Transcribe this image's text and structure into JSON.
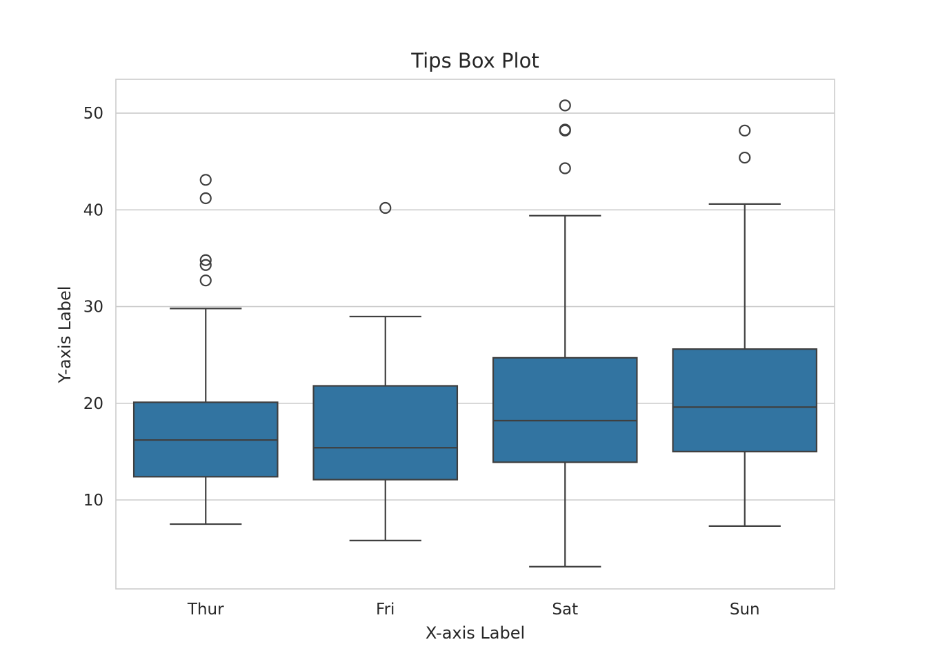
{
  "chart_data": {
    "type": "box",
    "title": "Tips Box Plot",
    "xlabel": "X-axis Label",
    "ylabel": "Y-axis Label",
    "categories": [
      "Thur",
      "Fri",
      "Sat",
      "Sun"
    ],
    "yticks": [
      10,
      20,
      30,
      40,
      50
    ],
    "ylim": [
      0.8,
      53.5
    ],
    "grid": true,
    "box_color": "#3274a1",
    "line_color": "#3f3f3f",
    "boxes": [
      {
        "category": "Thur",
        "whisker_low": 7.5,
        "q1": 12.4,
        "median": 16.2,
        "q3": 20.1,
        "whisker_high": 29.8,
        "fliers": [
          32.7,
          34.3,
          34.8,
          41.2,
          43.1
        ]
      },
      {
        "category": "Fri",
        "whisker_low": 5.8,
        "q1": 12.1,
        "median": 15.4,
        "q3": 21.8,
        "whisker_high": 28.97,
        "fliers": [
          40.2
        ]
      },
      {
        "category": "Sat",
        "whisker_low": 3.1,
        "q1": 13.9,
        "median": 18.2,
        "q3": 24.7,
        "whisker_high": 39.4,
        "fliers": [
          44.3,
          48.2,
          48.3,
          50.8
        ]
      },
      {
        "category": "Sun",
        "whisker_low": 7.3,
        "q1": 15.0,
        "median": 19.6,
        "q3": 25.6,
        "whisker_high": 40.6,
        "fliers": [
          45.4,
          48.2
        ]
      }
    ]
  }
}
